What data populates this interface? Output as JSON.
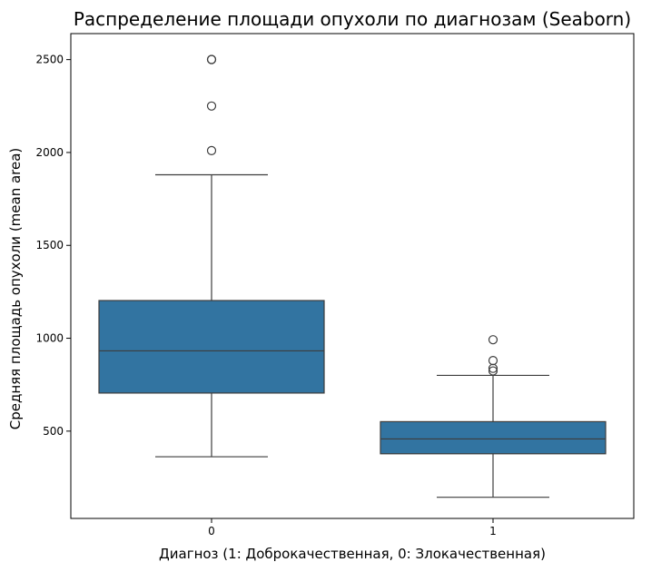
{
  "chart_data": {
    "type": "box",
    "title": "Распределение площади опухоли по диагнозам (Seaborn)",
    "xlabel": "Диагноз (1: Доброкачественная, 0: Злокачественная)",
    "ylabel": "Средняя площадь опухоли (mean area)",
    "categories": [
      "0",
      "1"
    ],
    "ylim": [
      30,
      2640
    ],
    "yticks": [
      500,
      1000,
      1500,
      2000,
      2500
    ],
    "grid": false,
    "box_color": "#3274a1",
    "line_color": "#3d3d3d",
    "series": [
      {
        "category": "0",
        "whisker_low": 362,
        "q1": 705,
        "median": 932,
        "q3": 1203,
        "whisker_high": 1880,
        "outliers": [
          2010,
          2250,
          2500,
          2501
        ]
      },
      {
        "category": "1",
        "whisker_low": 144,
        "q1": 378,
        "median": 458,
        "q3": 551,
        "whisker_high": 800,
        "outliers": [
          992,
          880,
          838,
          824
        ]
      }
    ]
  }
}
